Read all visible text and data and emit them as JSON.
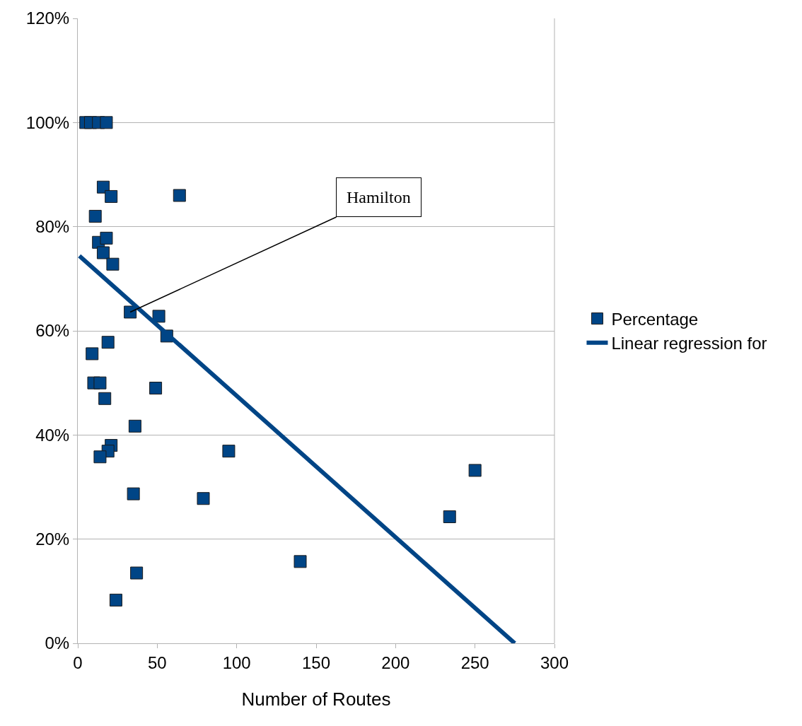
{
  "chart_data": {
    "type": "scatter",
    "xlabel": "Number of Routes",
    "xlim": [
      0,
      300
    ],
    "xticks": [
      0,
      50,
      100,
      150,
      200,
      250,
      300
    ],
    "ylim": [
      0,
      120
    ],
    "yticks": [
      {
        "value": 0,
        "label": "0%"
      },
      {
        "value": 20,
        "label": "20%"
      },
      {
        "value": 40,
        "label": "40%"
      },
      {
        "value": 60,
        "label": "60%"
      },
      {
        "value": 80,
        "label": "80%"
      },
      {
        "value": 100,
        "label": "100%"
      },
      {
        "value": 120,
        "label": "120%"
      }
    ],
    "grid": "y",
    "legend": "right",
    "series": [
      {
        "name": "Percentage",
        "color": "#004586",
        "marker": "square",
        "x": [
          5,
          8,
          13,
          18,
          16,
          21,
          64,
          11,
          13,
          18,
          16,
          22,
          33,
          51,
          56,
          19,
          9,
          10,
          14,
          17,
          49,
          36,
          21,
          19,
          14,
          95,
          79,
          35,
          37,
          24,
          140,
          234,
          250
        ],
        "values": [
          100,
          100,
          100,
          100,
          87.6,
          85.8,
          86,
          82,
          77,
          77.8,
          75,
          72.8,
          63.6,
          62.8,
          59,
          57.8,
          55.6,
          50,
          50,
          47,
          49,
          41.7,
          38,
          36.9,
          35.8,
          36.9,
          27.8,
          28.7,
          13.5,
          8.3,
          15.7,
          24.3,
          33.2
        ]
      },
      {
        "name": "Linear regression for",
        "color": "#004586",
        "type": "line",
        "marker": "none",
        "x": [
          1,
          275
        ],
        "values": [
          74.4,
          0
        ]
      }
    ],
    "annotations": [
      {
        "text": "Hamilton",
        "x": 33,
        "y": 63.6
      }
    ]
  }
}
